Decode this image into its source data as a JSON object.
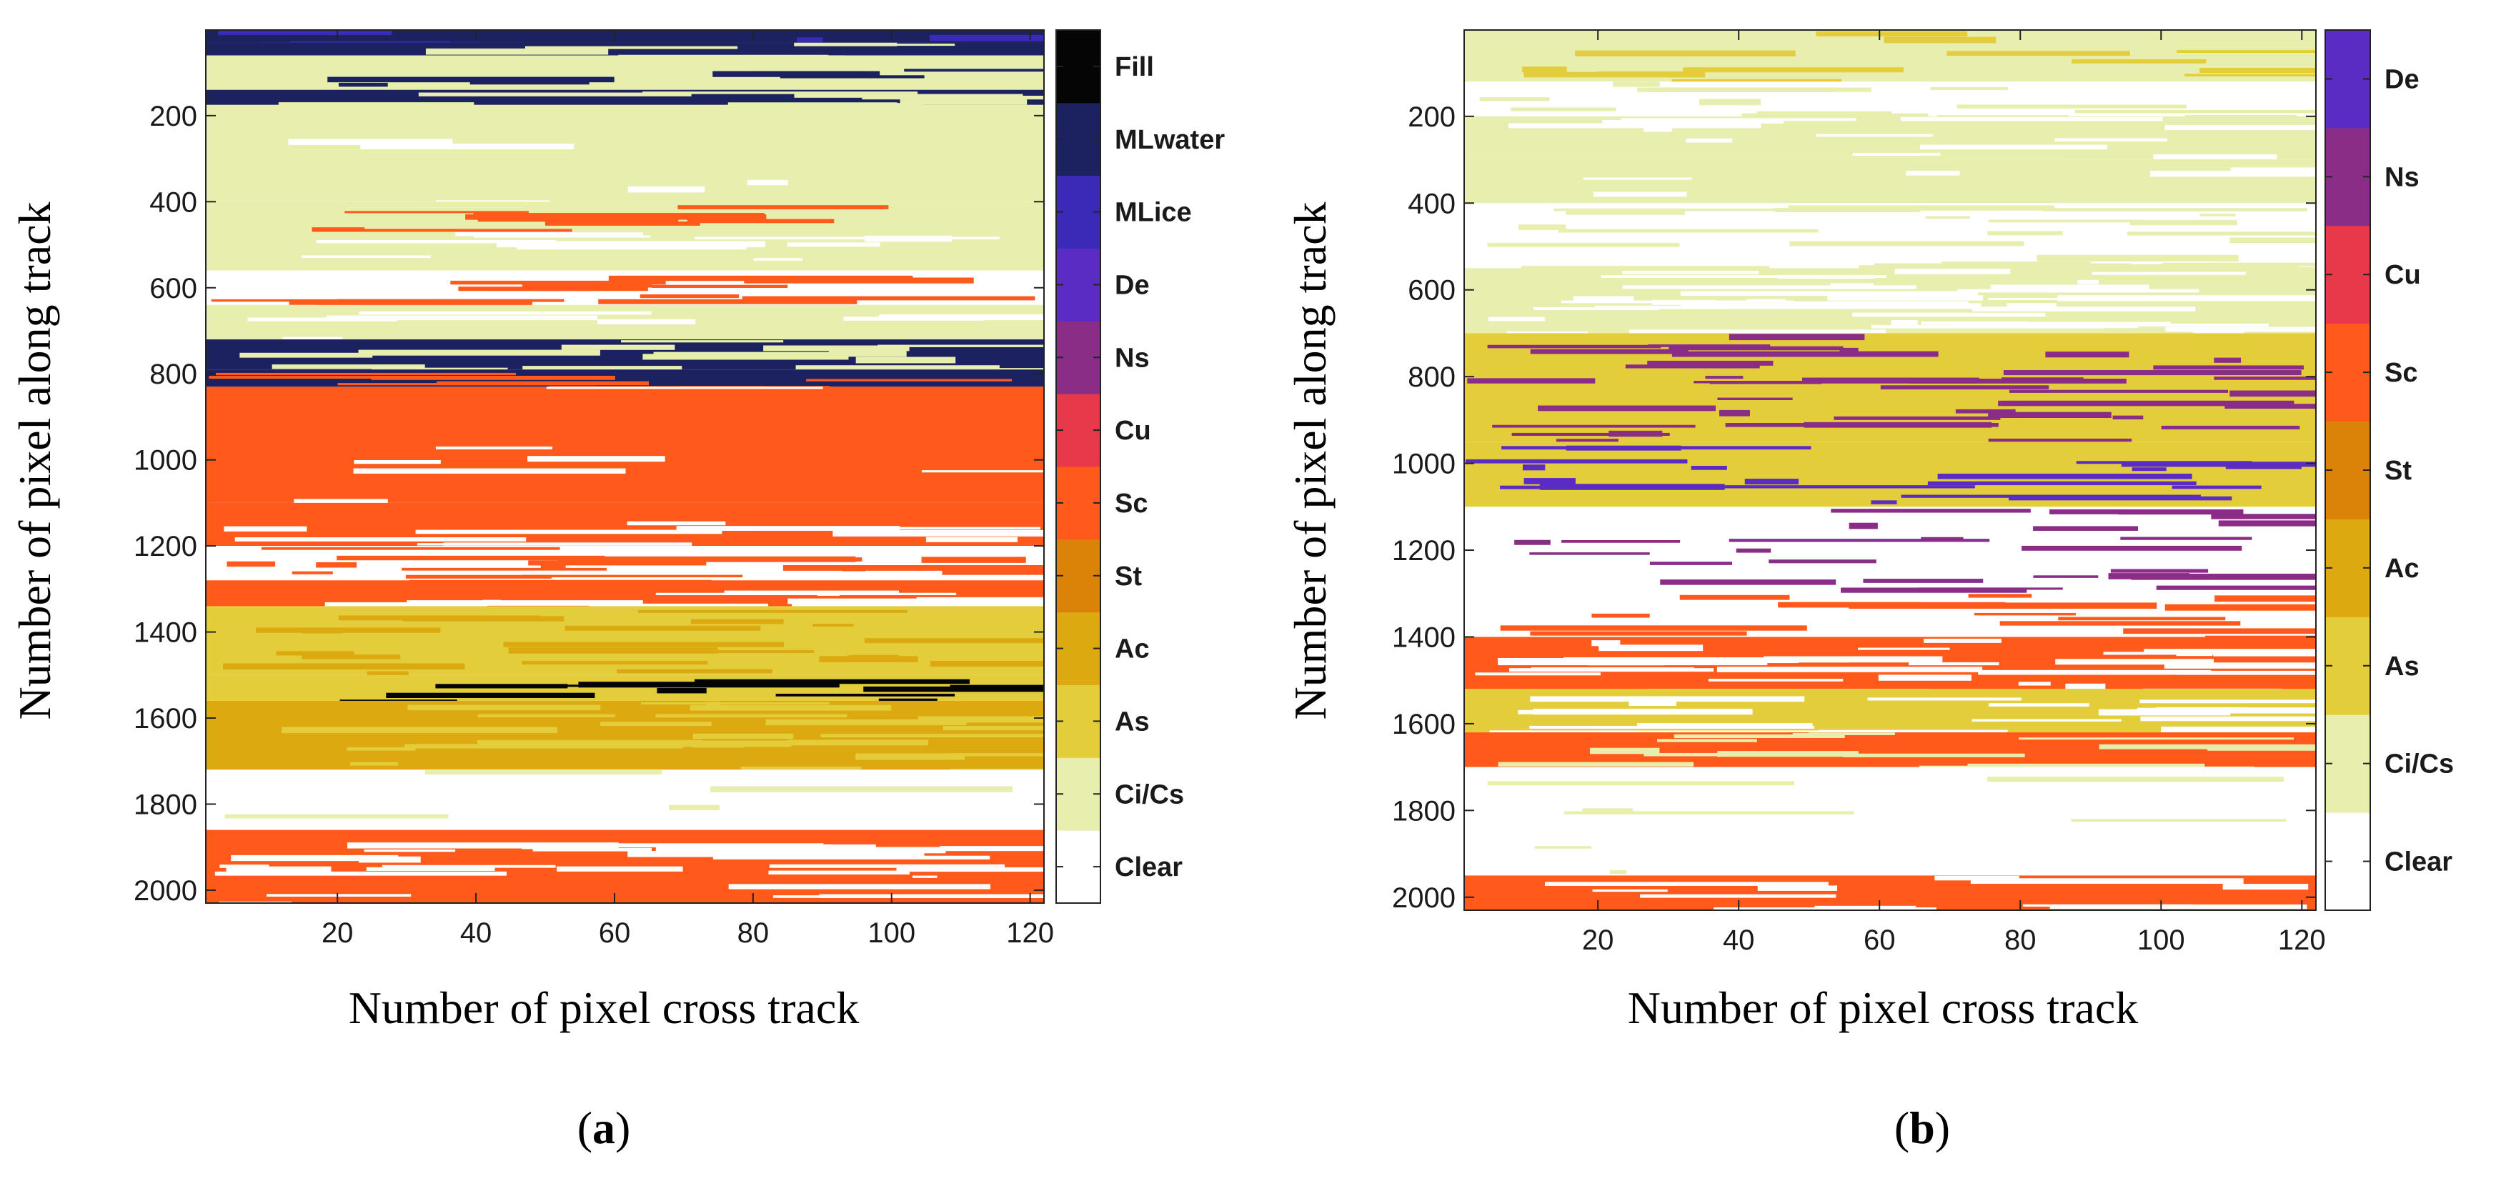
{
  "figure": {
    "panels": [
      {
        "id": "a",
        "label_open": "(",
        "label_letter": "a",
        "label_close": ")"
      },
      {
        "id": "b",
        "label_open": "(",
        "label_letter": "b",
        "label_close": ")"
      }
    ]
  },
  "chart_data": [
    {
      "type": "heatmap",
      "panel": "a",
      "xlabel": "Number of pixel cross track",
      "ylabel": "Number of pixel along track",
      "xlim": [
        1,
        122
      ],
      "ylim": [
        2030,
        1
      ],
      "x_ticks": [
        20,
        40,
        60,
        80,
        100,
        120
      ],
      "y_ticks": [
        200,
        400,
        600,
        800,
        1000,
        1200,
        1400,
        1600,
        1800,
        2000
      ],
      "colorbar": {
        "categories": [
          "Clear",
          "Ci/Cs",
          "As",
          "Ac",
          "St",
          "Sc",
          "Cu",
          "Ns",
          "De",
          "MLice",
          "MLwater",
          "Fill"
        ],
        "colors": [
          "#ffffff",
          "#e8eeae",
          "#e3cd3a",
          "#dcaa10",
          "#db8209",
          "#ff5a1c",
          "#e8394a",
          "#8a2d86",
          "#5a2cc4",
          "#3b2ab8",
          "#1c2260",
          "#050505"
        ]
      },
      "bands": [
        {
          "y0": 1,
          "y1": 30,
          "class": "MLwater",
          "mix": "MLice",
          "mix_frac": 0.3
        },
        {
          "y0": 30,
          "y1": 60,
          "class": "MLwater",
          "mix": "Ci/Cs",
          "mix_frac": 0.35
        },
        {
          "y0": 60,
          "y1": 140,
          "class": "Ci/Cs",
          "mix": "MLwater",
          "mix_frac": 0.15
        },
        {
          "y0": 140,
          "y1": 175,
          "class": "MLwater",
          "mix": "Ci/Cs",
          "mix_frac": 0.4
        },
        {
          "y0": 175,
          "y1": 400,
          "class": "Ci/Cs",
          "mix": "Clear",
          "mix_frac": 0.05
        },
        {
          "y0": 400,
          "y1": 470,
          "class": "Ci/Cs",
          "mix": "Sc",
          "mix_frac": 0.25
        },
        {
          "y0": 470,
          "y1": 560,
          "class": "Ci/Cs",
          "mix": "Clear",
          "mix_frac": 0.2
        },
        {
          "y0": 560,
          "y1": 640,
          "class": "Clear",
          "mix": "Sc",
          "mix_frac": 0.35
        },
        {
          "y0": 640,
          "y1": 720,
          "class": "Ci/Cs",
          "mix": "Clear",
          "mix_frac": 0.15
        },
        {
          "y0": 720,
          "y1": 790,
          "class": "MLwater",
          "mix": "Ci/Cs",
          "mix_frac": 0.4
        },
        {
          "y0": 790,
          "y1": 830,
          "class": "MLwater",
          "mix": "Sc",
          "mix_frac": 0.35
        },
        {
          "y0": 830,
          "y1": 1100,
          "class": "Sc",
          "mix": "Clear",
          "mix_frac": 0.05
        },
        {
          "y0": 1100,
          "y1": 1200,
          "class": "Sc",
          "mix": "Clear",
          "mix_frac": 0.2
        },
        {
          "y0": 1200,
          "y1": 1280,
          "class": "Clear",
          "mix": "Sc",
          "mix_frac": 0.4
        },
        {
          "y0": 1280,
          "y1": 1340,
          "class": "Sc",
          "mix": "Clear",
          "mix_frac": 0.35
        },
        {
          "y0": 1340,
          "y1": 1500,
          "class": "As",
          "mix": "Ac",
          "mix_frac": 0.25
        },
        {
          "y0": 1500,
          "y1": 1560,
          "class": "As",
          "mix": "Fill",
          "mix_frac": 0.35
        },
        {
          "y0": 1560,
          "y1": 1720,
          "class": "Ac",
          "mix": "As",
          "mix_frac": 0.3
        },
        {
          "y0": 1720,
          "y1": 1860,
          "class": "Clear",
          "mix": "Ci/Cs",
          "mix_frac": 0.05
        },
        {
          "y0": 1860,
          "y1": 2030,
          "class": "Sc",
          "mix": "Clear",
          "mix_frac": 0.3
        }
      ]
    },
    {
      "type": "heatmap",
      "panel": "b",
      "xlabel": "Number of pixel cross track",
      "ylabel": "Number of pixel along track",
      "xlim": [
        1,
        122
      ],
      "ylim": [
        2030,
        1
      ],
      "x_ticks": [
        20,
        40,
        60,
        80,
        100,
        120
      ],
      "y_ticks": [
        200,
        400,
        600,
        800,
        1000,
        1200,
        1400,
        1600,
        1800,
        2000
      ],
      "colorbar": {
        "categories": [
          "Clear",
          "Ci/Cs",
          "As",
          "Ac",
          "St",
          "Sc",
          "Cu",
          "Ns",
          "De"
        ],
        "colors": [
          "#ffffff",
          "#e8eeae",
          "#e3cd3a",
          "#dcaa10",
          "#db8209",
          "#ff5a1c",
          "#e8394a",
          "#8a2d86",
          "#5a2cc4"
        ]
      },
      "bands": [
        {
          "y0": 1,
          "y1": 120,
          "class": "Ci/Cs",
          "mix": "As",
          "mix_frac": 0.2
        },
        {
          "y0": 120,
          "y1": 200,
          "class": "Clear",
          "mix": "Ci/Cs",
          "mix_frac": 0.3
        },
        {
          "y0": 200,
          "y1": 300,
          "class": "Ci/Cs",
          "mix": "Clear",
          "mix_frac": 0.25
        },
        {
          "y0": 300,
          "y1": 400,
          "class": "Ci/Cs",
          "mix": "Clear",
          "mix_frac": 0.1
        },
        {
          "y0": 400,
          "y1": 550,
          "class": "Clear",
          "mix": "Ci/Cs",
          "mix_frac": 0.3
        },
        {
          "y0": 550,
          "y1": 700,
          "class": "Ci/Cs",
          "mix": "Clear",
          "mix_frac": 0.45
        },
        {
          "y0": 700,
          "y1": 950,
          "class": "As",
          "mix": "Ns",
          "mix_frac": 0.3
        },
        {
          "y0": 950,
          "y1": 1100,
          "class": "As",
          "mix": "De",
          "mix_frac": 0.25
        },
        {
          "y0": 1100,
          "y1": 1300,
          "class": "Clear",
          "mix": "Ns",
          "mix_frac": 0.25
        },
        {
          "y0": 1300,
          "y1": 1400,
          "class": "Clear",
          "mix": "Sc",
          "mix_frac": 0.3
        },
        {
          "y0": 1400,
          "y1": 1520,
          "class": "Sc",
          "mix": "Clear",
          "mix_frac": 0.45
        },
        {
          "y0": 1520,
          "y1": 1620,
          "class": "As",
          "mix": "Clear",
          "mix_frac": 0.4
        },
        {
          "y0": 1620,
          "y1": 1700,
          "class": "Sc",
          "mix": "Ci/Cs",
          "mix_frac": 0.35
        },
        {
          "y0": 1700,
          "y1": 1950,
          "class": "Clear",
          "mix": "Ci/Cs",
          "mix_frac": 0.05
        },
        {
          "y0": 1950,
          "y1": 2030,
          "class": "Sc",
          "mix": "Clear",
          "mix_frac": 0.25
        }
      ]
    }
  ]
}
